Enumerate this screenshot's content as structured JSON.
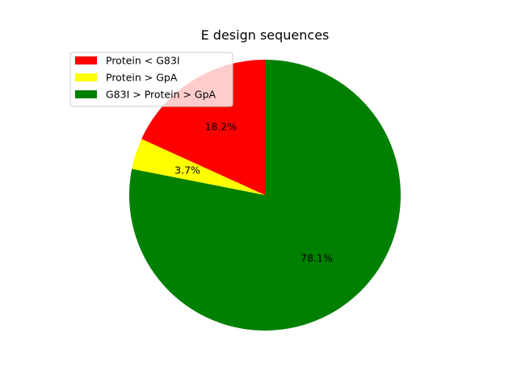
{
  "chart_data": {
    "type": "pie",
    "title": "E design sequences",
    "labels": [
      "Protein < G83I",
      "Protein > GpA",
      "G83I > Protein > GpA"
    ],
    "values": [
      18.2,
      3.7,
      78.1
    ],
    "value_labels": [
      "18.2%",
      "3.7%",
      "78.1%"
    ],
    "colors": [
      "#ff0000",
      "#ffff00",
      "#008000"
    ],
    "start_angle_deg": 90,
    "direction": "counterclockwise",
    "legend_position": "upper-left"
  }
}
